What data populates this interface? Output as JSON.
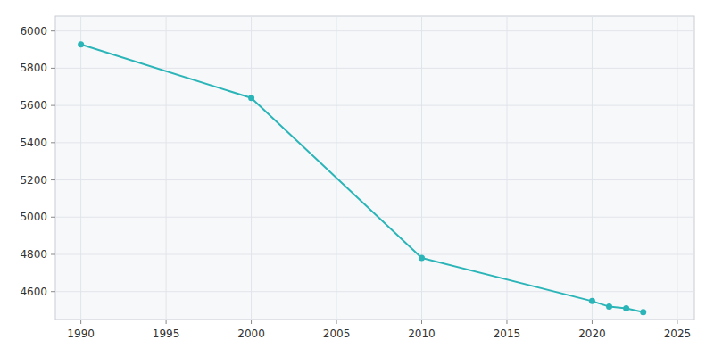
{
  "chart_data": {
    "type": "line",
    "x": [
      1990,
      2000,
      2010,
      2020,
      2021,
      2022,
      2023
    ],
    "values": [
      5928,
      5640,
      4781,
      4549,
      4519,
      4510,
      4490
    ],
    "color": "#2bb5b8",
    "marker": "circle",
    "xlim": [
      1988.5,
      2026
    ],
    "ylim": [
      4450,
      6080
    ],
    "xticks": [
      1990,
      1995,
      2000,
      2005,
      2010,
      2015,
      2020,
      2025
    ],
    "yticks": [
      4600,
      4800,
      5000,
      5200,
      5400,
      5600,
      5800,
      6000
    ],
    "grid": true
  }
}
